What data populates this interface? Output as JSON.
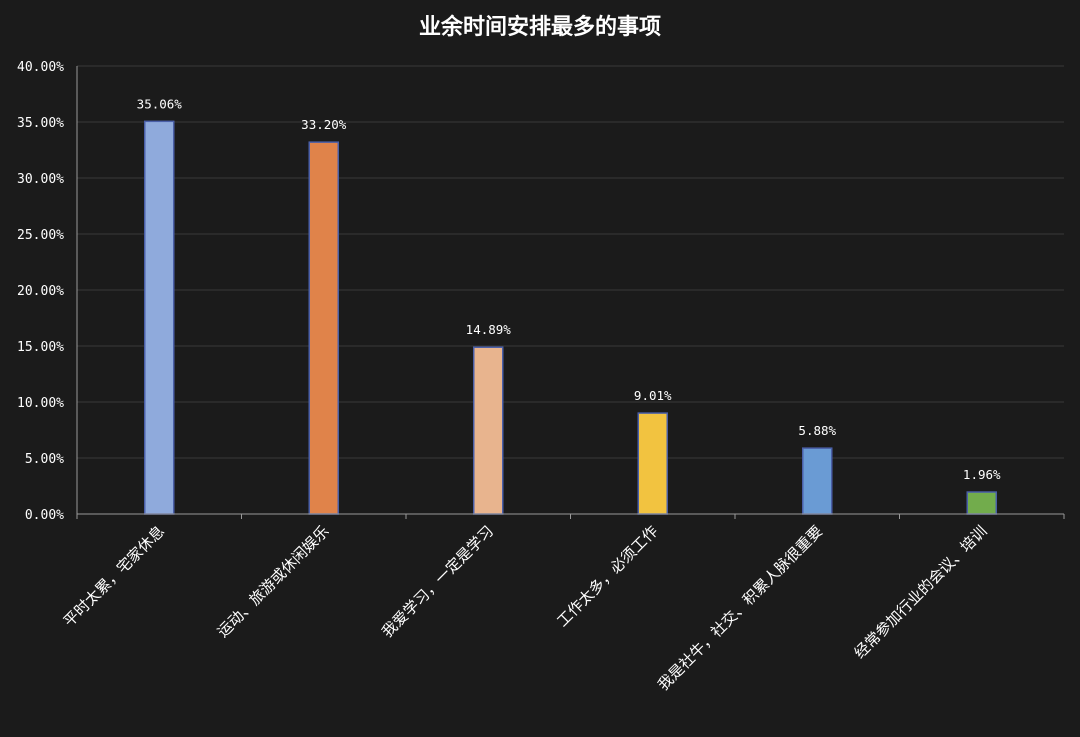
{
  "chart_data": {
    "type": "bar",
    "title": "业余时间安排最多的事项",
    "categories": [
      "平时太累，宅家休息",
      "运动、旅游或休闲娱乐",
      "我爱学习，一定是学习",
      "工作太多，必须工作",
      "我是社牛，社交、积累人脉很重要",
      "经常参加行业的会议、培训"
    ],
    "values": [
      35.06,
      33.2,
      14.89,
      9.01,
      5.88,
      1.96
    ],
    "data_labels": [
      "35.06%",
      "33.20%",
      "14.89%",
      "9.01%",
      "5.88%",
      "1.96%"
    ],
    "bar_colors": [
      "#8faadc",
      "#e0834a",
      "#e8b48e",
      "#f2c340",
      "#6a9bd4",
      "#72ac4c"
    ],
    "bar_stroke": "#4a5fa8",
    "ylim": [
      0,
      40
    ],
    "yticks": [
      "0.00%",
      "5.00%",
      "10.00%",
      "15.00%",
      "20.00%",
      "25.00%",
      "30.00%",
      "35.00%",
      "40.00%"
    ],
    "xlabel": "",
    "ylabel": "",
    "grid": true,
    "legend": "none",
    "background": "#1b1b1b"
  }
}
